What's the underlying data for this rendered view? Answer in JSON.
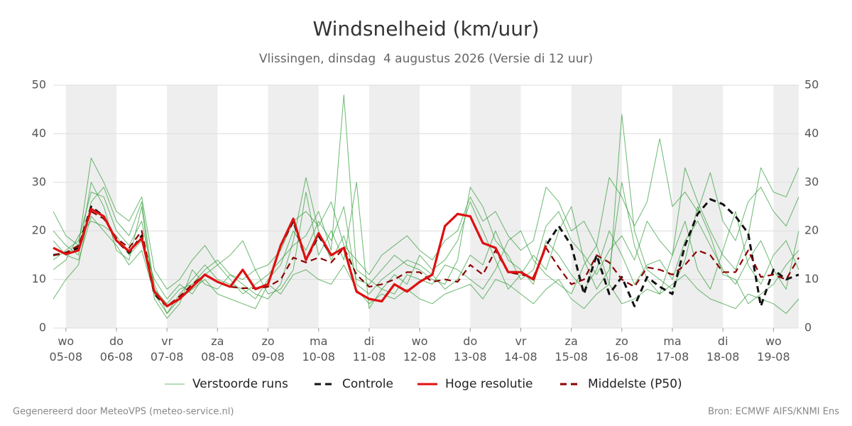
{
  "chart_data": {
    "type": "line",
    "title": "Windsnelheid (km/uur)",
    "subtitle": "Vlissingen, dinsdag  4 augustus 2026 (Versie di 12 uur)",
    "footer_left": "Gegenereerd door MeteoVPS (meteo-service.nl)",
    "footer_right": "Bron: ECMWF AIFS/KNMI Ens",
    "xlim": [
      4.75,
      19.5
    ],
    "ylim": [
      0,
      50
    ],
    "yticks": [
      0,
      10,
      20,
      30,
      40,
      50
    ],
    "grid": true,
    "xticks": [
      {
        "value": 5,
        "label": "wo\n05-08"
      },
      {
        "value": 6,
        "label": "do\n06-08"
      },
      {
        "value": 7,
        "label": "vr\n07-08"
      },
      {
        "value": 8,
        "label": "za\n08-08"
      },
      {
        "value": 9,
        "label": "zo\n09-08"
      },
      {
        "value": 10,
        "label": "ma\n10-08"
      },
      {
        "value": 11,
        "label": "di\n11-08"
      },
      {
        "value": 12,
        "label": "wo\n12-08"
      },
      {
        "value": 13,
        "label": "do\n13-08"
      },
      {
        "value": 14,
        "label": "vr\n14-08"
      },
      {
        "value": 15,
        "label": "za\n15-08"
      },
      {
        "value": 16,
        "label": "zo\n16-08"
      },
      {
        "value": 17,
        "label": "ma\n17-08"
      },
      {
        "value": 18,
        "label": "di\n18-08"
      },
      {
        "value": 19,
        "label": "wo\n19-08"
      }
    ],
    "x": [
      4.75,
      5,
      5.25,
      5.5,
      5.75,
      6,
      6.25,
      6.5,
      6.75,
      7,
      7.25,
      7.5,
      7.75,
      8,
      8.25,
      8.5,
      8.75,
      9,
      9.25,
      9.5,
      9.75,
      10,
      10.25,
      10.5,
      10.75,
      11,
      11.25,
      11.5,
      11.75,
      12,
      12.25,
      12.5,
      12.75,
      13,
      13.25,
      13.5,
      13.75,
      14,
      14.25,
      14.5,
      14.75,
      15,
      15.25,
      15.5,
      15.75,
      16,
      16.25,
      16.5,
      16.75,
      17,
      17.25,
      17.5,
      17.75,
      18,
      18.25,
      18.5,
      18.75,
      19,
      19.25,
      19.5
    ],
    "series": [
      {
        "name": "Verstoorde runs",
        "color": "#2e9a35",
        "runs": [
          [
            14,
            16,
            18,
            28,
            27,
            20,
            17,
            22,
            9,
            3,
            7,
            10,
            13,
            10,
            9,
            8,
            6,
            10,
            13,
            20,
            16,
            22,
            18,
            25,
            9,
            7,
            10,
            12,
            14,
            13,
            11,
            8,
            10,
            15,
            13,
            20,
            14,
            12,
            9,
            18,
            15,
            11,
            8,
            12,
            20,
            15,
            9,
            13,
            14,
            10,
            18,
            22,
            17,
            12,
            9,
            14,
            18,
            12,
            8,
            20
          ],
          [
            20,
            17,
            15,
            30,
            25,
            16,
            14,
            25,
            6,
            2,
            5,
            12,
            9,
            8,
            11,
            10,
            12,
            7,
            8,
            12,
            28,
            15,
            20,
            14,
            30,
            4,
            8,
            11,
            9,
            15,
            12,
            14,
            18,
            26,
            20,
            14,
            8,
            11,
            15,
            12,
            20,
            25,
            14,
            8,
            12,
            30,
            17,
            10,
            7,
            15,
            22,
            12,
            8,
            16,
            24,
            13,
            9,
            15,
            18,
            12
          ],
          [
            12,
            14,
            19,
            22,
            21,
            19,
            15,
            18,
            10,
            6,
            9,
            7,
            11,
            13,
            10,
            7,
            9,
            11,
            14,
            17,
            19,
            24,
            16,
            48,
            12,
            10,
            8,
            7,
            11,
            10,
            9,
            13,
            12,
            10,
            8,
            12,
            18,
            20,
            14,
            11,
            9,
            7,
            13,
            17,
            9,
            44,
            20,
            12,
            10,
            8,
            14,
            25,
            19,
            11,
            10,
            5,
            7,
            9,
            13,
            16
          ],
          [
            6,
            10,
            13,
            26,
            29,
            22,
            19,
            26,
            8,
            5,
            8,
            9,
            12,
            14,
            11,
            9,
            7,
            6,
            9,
            18,
            31,
            20,
            14,
            19,
            10,
            9,
            12,
            15,
            13,
            12,
            10,
            9,
            14,
            29,
            25,
            18,
            15,
            10,
            12,
            21,
            24,
            18,
            15,
            11,
            16,
            19,
            14,
            22,
            18,
            15,
            33,
            26,
            20,
            15,
            12,
            19,
            33,
            28,
            27,
            33
          ],
          [
            18,
            15,
            14,
            23,
            20,
            17,
            13,
            16,
            7,
            3,
            6,
            8,
            10,
            7,
            6,
            5,
            4,
            9,
            7,
            11,
            12,
            10,
            9,
            13,
            8,
            5,
            7,
            6,
            8,
            6,
            5,
            7,
            8,
            9,
            6,
            10,
            9,
            7,
            5,
            8,
            10,
            6,
            4,
            7,
            9,
            5,
            6,
            8,
            7,
            9,
            11,
            8,
            6,
            5,
            4,
            7,
            6,
            5,
            3,
            6
          ],
          [
            24,
            19,
            17,
            35,
            30,
            24,
            22,
            27,
            12,
            8,
            10,
            14,
            17,
            13,
            15,
            18,
            12,
            13,
            16,
            22,
            24,
            21,
            26,
            17,
            14,
            11,
            15,
            17,
            19,
            16,
            14,
            18,
            20,
            27,
            22,
            24,
            19,
            16,
            18,
            29,
            26,
            20,
            22,
            17,
            31,
            27,
            21,
            26,
            39,
            25,
            28,
            24,
            32,
            22,
            18,
            26,
            29,
            24,
            21,
            27
          ]
        ]
      },
      {
        "name": "Controle",
        "color": "#111111",
        "dash": true,
        "values": [
          15,
          15.5,
          16.5,
          25,
          23,
          18,
          15.5,
          19,
          7,
          4.5,
          6,
          8.5,
          11,
          9.5,
          8.5,
          12,
          8,
          9,
          17,
          22,
          14,
          19,
          15,
          16.5,
          7.5,
          6,
          5.5,
          9,
          7.5,
          9.5,
          11,
          21,
          23.5,
          23,
          17.5,
          16.5,
          11.5,
          11.5,
          10,
          17,
          21,
          17,
          7,
          15,
          7,
          10.5,
          4.5,
          10.5,
          8.5,
          7,
          17,
          23.5,
          26.5,
          25.5,
          23,
          19.5,
          4.5,
          12,
          10,
          11
        ]
      },
      {
        "name": "Hoge resolutie",
        "color": "#e01010",
        "values": [
          16.5,
          15.2,
          16,
          24.5,
          23,
          18,
          15.8,
          18.5,
          7.5,
          4.5,
          6,
          8.5,
          11,
          9.5,
          8.5,
          12,
          8,
          9,
          17,
          22.5,
          14,
          19.5,
          15,
          16.5,
          7.5,
          6,
          5.5,
          9,
          7.5,
          9.5,
          11,
          21,
          23.5,
          23,
          17.5,
          16.5,
          11.5,
          11.5,
          10,
          17,
          null,
          null,
          null,
          null,
          null,
          null,
          null,
          null,
          null,
          null,
          null,
          null,
          null,
          null,
          null,
          null,
          null,
          null,
          null,
          null
        ]
      },
      {
        "name": "Middelste (P50)",
        "color": "#8b0000",
        "dash": true,
        "values": [
          15,
          15.5,
          17,
          24,
          22.5,
          18.5,
          16.5,
          20,
          7.5,
          4.5,
          6.5,
          9,
          11,
          9.5,
          8.5,
          8.2,
          8.2,
          8.5,
          10,
          14.5,
          13.5,
          14.5,
          13.5,
          16.5,
          11,
          8.5,
          9,
          10,
          11.5,
          11.5,
          9.5,
          10,
          9.5,
          13,
          11,
          16,
          11.5,
          11,
          10.5,
          16.5,
          12.5,
          9,
          10,
          15,
          13.5,
          10,
          8.5,
          12.5,
          12,
          11,
          13,
          16,
          15,
          11.5,
          11.5,
          16,
          10.5,
          11,
          10,
          14.5
        ]
      }
    ]
  }
}
